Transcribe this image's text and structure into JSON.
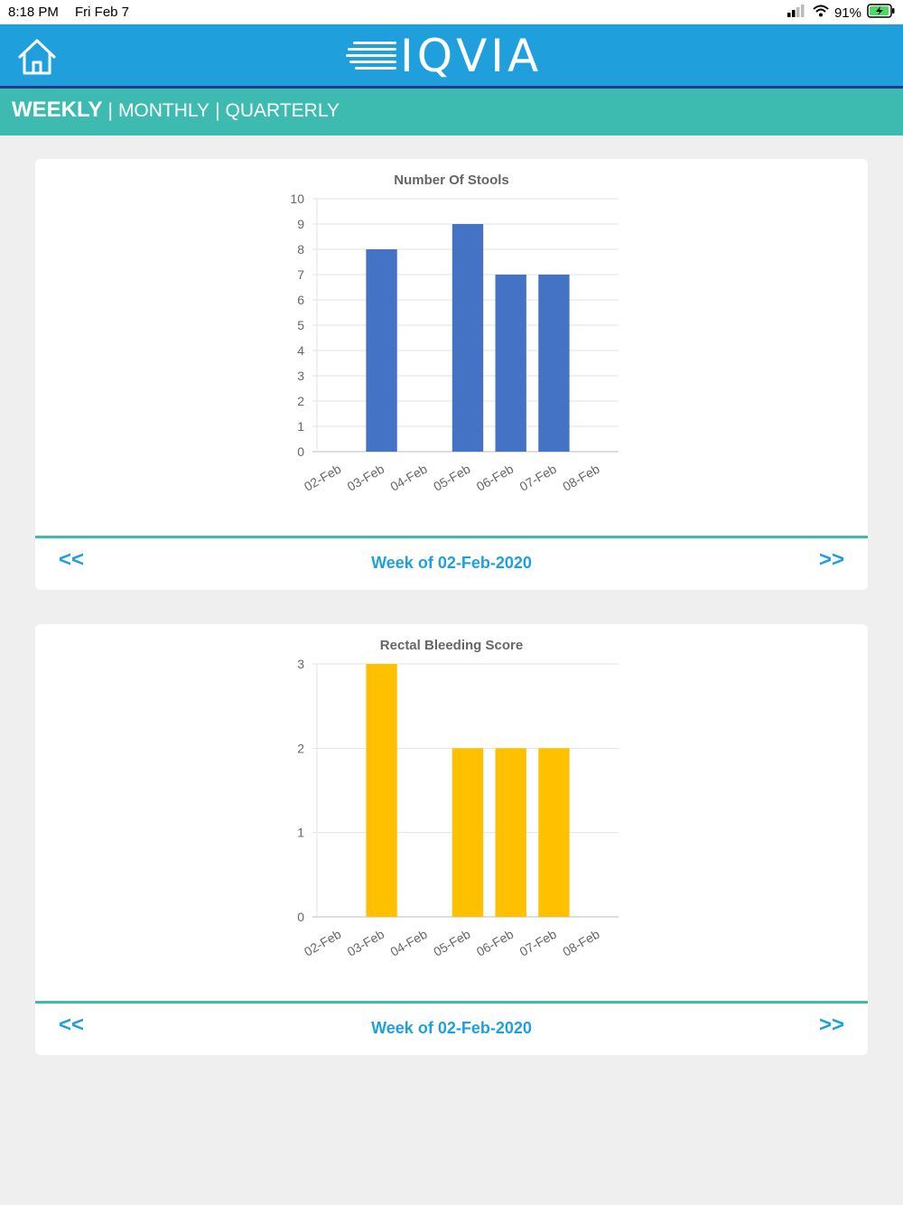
{
  "status_bar": {
    "time": "8:18 PM",
    "date": "Fri Feb 7",
    "battery": "91%"
  },
  "header": {
    "brand": "IQVIA"
  },
  "period_tabs": {
    "weekly": "WEEKLY",
    "separator": "|",
    "monthly": "MONTHLY",
    "quarterly": "QUARTERLY",
    "active": "weekly"
  },
  "cards": [
    {
      "week_label": "Week of 02-Feb-2020",
      "prev_label": "<<",
      "next_label": ">>"
    },
    {
      "week_label": "Week of 02-Feb-2020",
      "prev_label": "<<",
      "next_label": ">>"
    }
  ],
  "colors": {
    "header": "#1fa0dd",
    "tab_bar": "#3ebbb0",
    "stools_bar": "#4472c4",
    "bleeding_bar": "#ffc000",
    "link": "#1fa0dd"
  },
  "chart_data": [
    {
      "type": "bar",
      "title": "Number Of Stools",
      "categories": [
        "02-Feb",
        "03-Feb",
        "04-Feb",
        "05-Feb",
        "06-Feb",
        "07-Feb",
        "08-Feb"
      ],
      "values": [
        null,
        8,
        null,
        9,
        7,
        7,
        null
      ],
      "ylim": [
        0,
        10
      ],
      "yticks": [
        0,
        1,
        2,
        3,
        4,
        5,
        6,
        7,
        8,
        9,
        10
      ],
      "color": "#4472c4",
      "grid": true
    },
    {
      "type": "bar",
      "title": "Rectal Bleeding Score",
      "categories": [
        "02-Feb",
        "03-Feb",
        "04-Feb",
        "05-Feb",
        "06-Feb",
        "07-Feb",
        "08-Feb"
      ],
      "values": [
        null,
        3,
        null,
        2,
        2,
        2,
        null
      ],
      "ylim": [
        0,
        3
      ],
      "yticks": [
        0,
        1,
        2,
        3
      ],
      "color": "#ffc000",
      "grid": true
    }
  ]
}
